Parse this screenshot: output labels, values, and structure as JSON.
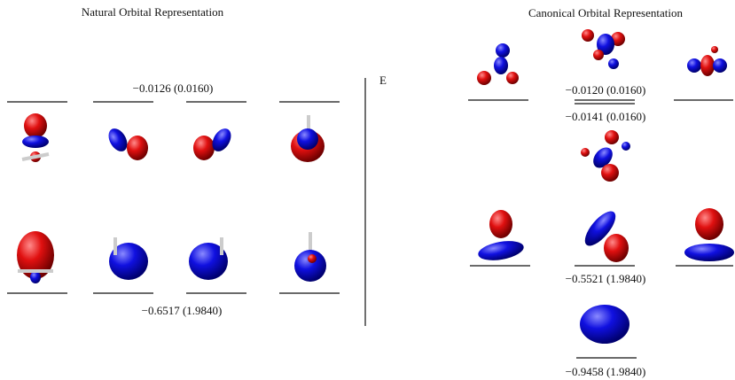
{
  "natural": {
    "title": "Natural Orbital Representation",
    "levels": [
      "−0.0126 (0.0160)",
      "−0.6517 (1.9840)"
    ]
  },
  "axis_label": "E",
  "canonical": {
    "title": "Canonical Orbital Representation",
    "levels": [
      "−0.0120 (0.0160)",
      "−0.0141 (0.0160)",
      "−0.5521 (1.9840)",
      "−0.9458 (1.9840)"
    ]
  }
}
